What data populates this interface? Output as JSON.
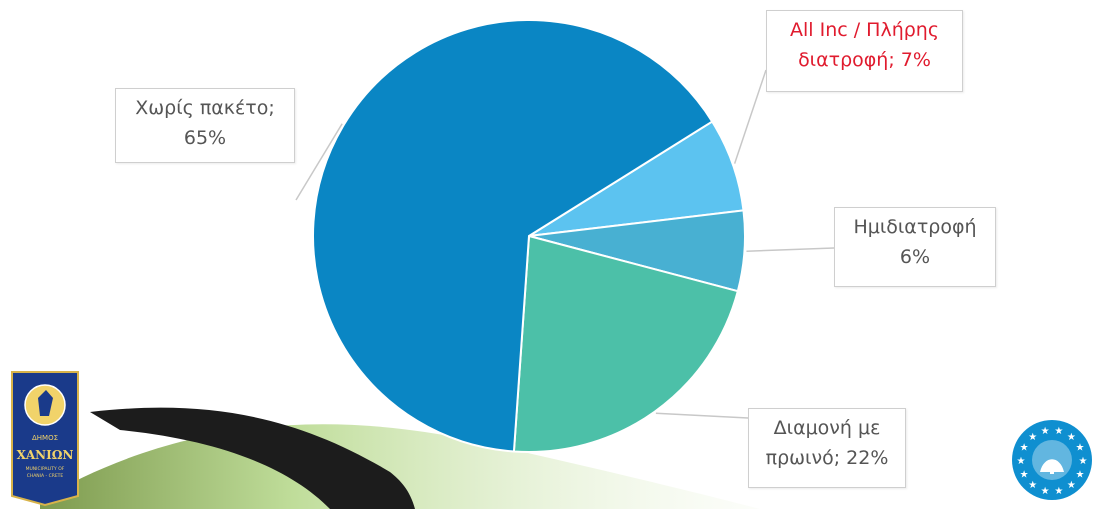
{
  "chart_data": {
    "type": "pie",
    "slices": [
      {
        "label_line1": "Χωρίς πακέτο;",
        "label_line2": "65%",
        "value": 65,
        "color": "#0a86c4",
        "label_color": "#555555"
      },
      {
        "label_line1": "All Inc / Πλήρης",
        "label_line2": "διατροφή; 7%",
        "value": 7,
        "color": "#5cc3f0",
        "label_color": "#e01b2e"
      },
      {
        "label_line1": "Ημιδιατροφή",
        "label_line2": "6%",
        "value": 6,
        "color": "#48b0d2",
        "label_color": "#555555"
      },
      {
        "label_line1": "Διαμονή με",
        "label_line2": "πρωινό; 22%",
        "value": 22,
        "color": "#4cc0a8",
        "label_color": "#555555"
      }
    ],
    "start_angle_deg": -32
  },
  "decor": {
    "logo_left_text": [
      "ΔΗΜΟΣ",
      "ΧΑΝΙΩΝ",
      "MUNICIPALITY OF",
      "CHANIA - CRETE"
    ],
    "logo_left_color": "#1a3a8a",
    "logo_right_color": "#0f8fd0",
    "swoosh_color": "#1c1c1c",
    "swoosh_accent": "#d9ecc2"
  }
}
